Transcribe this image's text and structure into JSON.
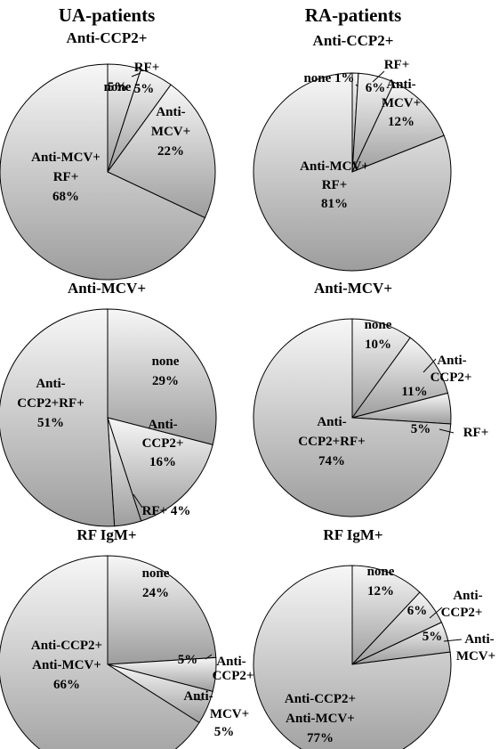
{
  "column_titles": [
    "UA-patients",
    "RA-patients"
  ],
  "chart_data": [
    {
      "type": "pie",
      "title": "Anti-CCP2+",
      "slices": [
        {
          "label": "none",
          "value": 5,
          "text": [
            "none",
            "5%"
          ]
        },
        {
          "label": "RF+",
          "value": 5,
          "text": [
            "RF+",
            "5%"
          ]
        },
        {
          "label": "Anti-MCV+",
          "value": 22,
          "text": [
            "Anti-",
            "MCV+",
            "22%"
          ]
        },
        {
          "label": "Anti-MCV+ RF+",
          "value": 68,
          "text": [
            "Anti-MCV+",
            "RF+",
            "68%"
          ]
        }
      ]
    },
    {
      "type": "pie",
      "title": "Anti-CCP2+",
      "slices": [
        {
          "label": "none",
          "value": 1,
          "text": [
            "none 1%"
          ]
        },
        {
          "label": "RF+",
          "value": 6,
          "text": [
            "RF+",
            "6%"
          ]
        },
        {
          "label": "Anti-MCV+",
          "value": 12,
          "text": [
            "Anti-",
            "MCV+",
            "12%"
          ]
        },
        {
          "label": "Anti-MCV+ RF+",
          "value": 81,
          "text": [
            "Anti-MCV+",
            "RF+",
            "81%"
          ]
        }
      ]
    },
    {
      "type": "pie",
      "title": "Anti-MCV+",
      "slices": [
        {
          "label": "none",
          "value": 29,
          "text": [
            "none",
            "29%"
          ]
        },
        {
          "label": "Anti-CCP2+",
          "value": 16,
          "text": [
            "Anti-",
            "CCP2+",
            "16%"
          ]
        },
        {
          "label": "RF+",
          "value": 4,
          "text": [
            "RF+ 4%"
          ]
        },
        {
          "label": "Anti-CCP2+RF+",
          "value": 51,
          "text": [
            "Anti-",
            "CCP2+RF+",
            "51%"
          ]
        }
      ]
    },
    {
      "type": "pie",
      "title": "Anti-MCV+",
      "slices": [
        {
          "label": "none",
          "value": 10,
          "text": [
            "none",
            "10%"
          ]
        },
        {
          "label": "Anti-CCP2+",
          "value": 11,
          "text": [
            "Anti-",
            "CCP2+",
            "11%"
          ]
        },
        {
          "label": "RF+",
          "value": 5,
          "text": [
            "RF+",
            "5%"
          ]
        },
        {
          "label": "Anti-CCP2+RF+",
          "value": 74,
          "text": [
            "Anti-",
            "CCP2+RF+",
            "74%"
          ]
        }
      ]
    },
    {
      "type": "pie",
      "title": "RF IgM+",
      "slices": [
        {
          "label": "none",
          "value": 24,
          "text": [
            "none",
            "24%"
          ]
        },
        {
          "label": "Anti-CCP2+",
          "value": 5,
          "text": [
            "Anti-",
            "CCP2+",
            "5%"
          ]
        },
        {
          "label": "Anti-MCV+",
          "value": 5,
          "text": [
            "Anti-",
            "MCV+",
            "5%"
          ]
        },
        {
          "label": "Anti-CCP2+ Anti-MCV+",
          "value": 66,
          "text": [
            "Anti-CCP2+",
            "Anti-MCV+",
            "66%"
          ]
        }
      ]
    },
    {
      "type": "pie",
      "title": "RF IgM+",
      "slices": [
        {
          "label": "none",
          "value": 12,
          "text": [
            "none",
            "12%"
          ]
        },
        {
          "label": "Anti-CCP2+",
          "value": 6,
          "text": [
            "Anti-",
            "CCP2+",
            "6%"
          ]
        },
        {
          "label": "Anti-MCV+",
          "value": 5,
          "text": [
            "Anti-",
            "MCV+",
            "5%"
          ]
        },
        {
          "label": "Anti-CCP2+ Anti-MCV+",
          "value": 77,
          "text": [
            "Anti-CCP2+",
            "Anti-MCV+",
            "77%"
          ]
        }
      ]
    }
  ]
}
